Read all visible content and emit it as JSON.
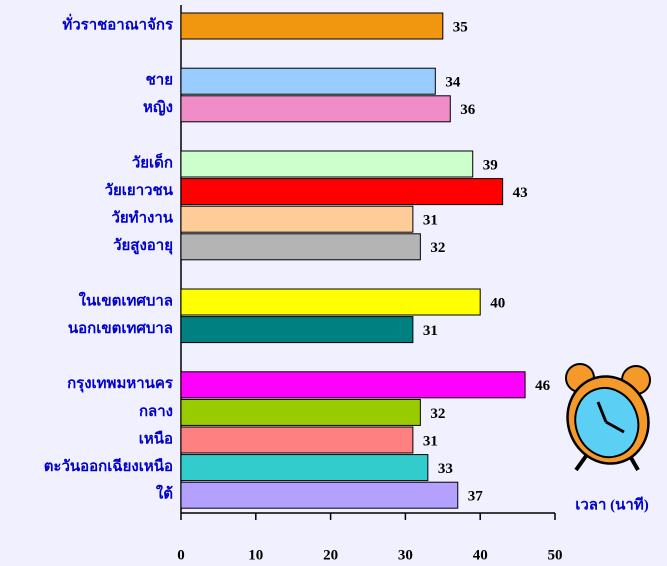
{
  "chart_data": {
    "type": "barh",
    "axis_label": "เวลา (นาที)",
    "categories": [
      "ทั่วราชอาณาจักร",
      null,
      "ชาย",
      "หญิง",
      null,
      "วัยเด็ก",
      "วัยเยาวชน",
      "วัยทำงาน",
      "วัยสูงอายุ",
      null,
      "ในเขตเทศบาล",
      "นอกเขตเทศบาล",
      null,
      "กรุงเทพมหานคร",
      "กลาง",
      "เหนือ",
      "ตะวันออกเฉียงเหนือ",
      "ใต้"
    ],
    "values": [
      35,
      null,
      34,
      36,
      null,
      39,
      43,
      31,
      32,
      null,
      40,
      31,
      null,
      46,
      32,
      31,
      33,
      37
    ],
    "colors": [
      "#f0960f",
      null,
      "#99ccff",
      "#f08cc8",
      null,
      "#ccffcc",
      "#ff0000",
      "#ffcc99",
      "#b4b4b4",
      null,
      "#ffff00",
      "#008080",
      null,
      "#ff00ff",
      "#99cc00",
      "#ff8080",
      "#33cccc",
      "#b4a0ff"
    ],
    "xlim": [
      0,
      50
    ],
    "xticks": [
      0,
      10,
      20,
      30,
      40,
      50
    ]
  }
}
